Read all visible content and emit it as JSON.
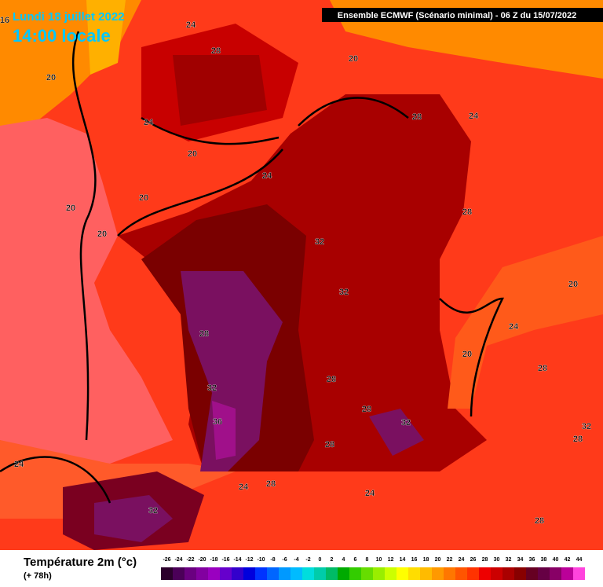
{
  "header": {
    "title": "Lundi 18 juillet 2022",
    "time": "14:00 locale",
    "model": "Ensemble ECMWF  (Scénario minimal) - 06 Z du 15/07/2022"
  },
  "legend": {
    "title": "Température 2m (°c)",
    "lead": "(+ 78h)",
    "scale": {
      "values": [
        -26,
        -24,
        -22,
        -20,
        -18,
        -16,
        -14,
        -12,
        -10,
        -8,
        -6,
        -4,
        -2,
        0,
        2,
        4,
        6,
        8,
        10,
        12,
        14,
        16,
        18,
        20,
        22,
        24,
        26,
        28,
        30,
        32,
        34,
        36,
        38,
        40,
        42,
        44
      ],
      "colors": [
        "#2b002b",
        "#4b0058",
        "#6a0080",
        "#8200a0",
        "#9a00c0",
        "#6600cc",
        "#3300cc",
        "#0000dd",
        "#0033ff",
        "#0066ff",
        "#0099ff",
        "#00bbff",
        "#00dddd",
        "#00ccaa",
        "#00bb66",
        "#00aa00",
        "#33cc00",
        "#66dd00",
        "#99ee00",
        "#ccff00",
        "#ffff00",
        "#ffdd00",
        "#ffbb00",
        "#ff9900",
        "#ff7700",
        "#ff5500",
        "#ff3300",
        "#ee0000",
        "#cc0000",
        "#aa0000",
        "#880000",
        "#660022",
        "#660044",
        "#880066",
        "#bb0099",
        "#ff44dd"
      ]
    }
  },
  "map": {
    "contour_labels": [
      "16",
      "24",
      "28",
      "20",
      "20",
      "28",
      "24",
      "24",
      "20",
      "24",
      "20",
      "20",
      "28",
      "20",
      "32",
      "20",
      "32",
      "24",
      "28",
      "20",
      "28",
      "32",
      "28",
      "28",
      "32",
      "36",
      "32",
      "28",
      "28",
      "24",
      "28",
      "24",
      "24",
      "32",
      "28"
    ]
  }
}
